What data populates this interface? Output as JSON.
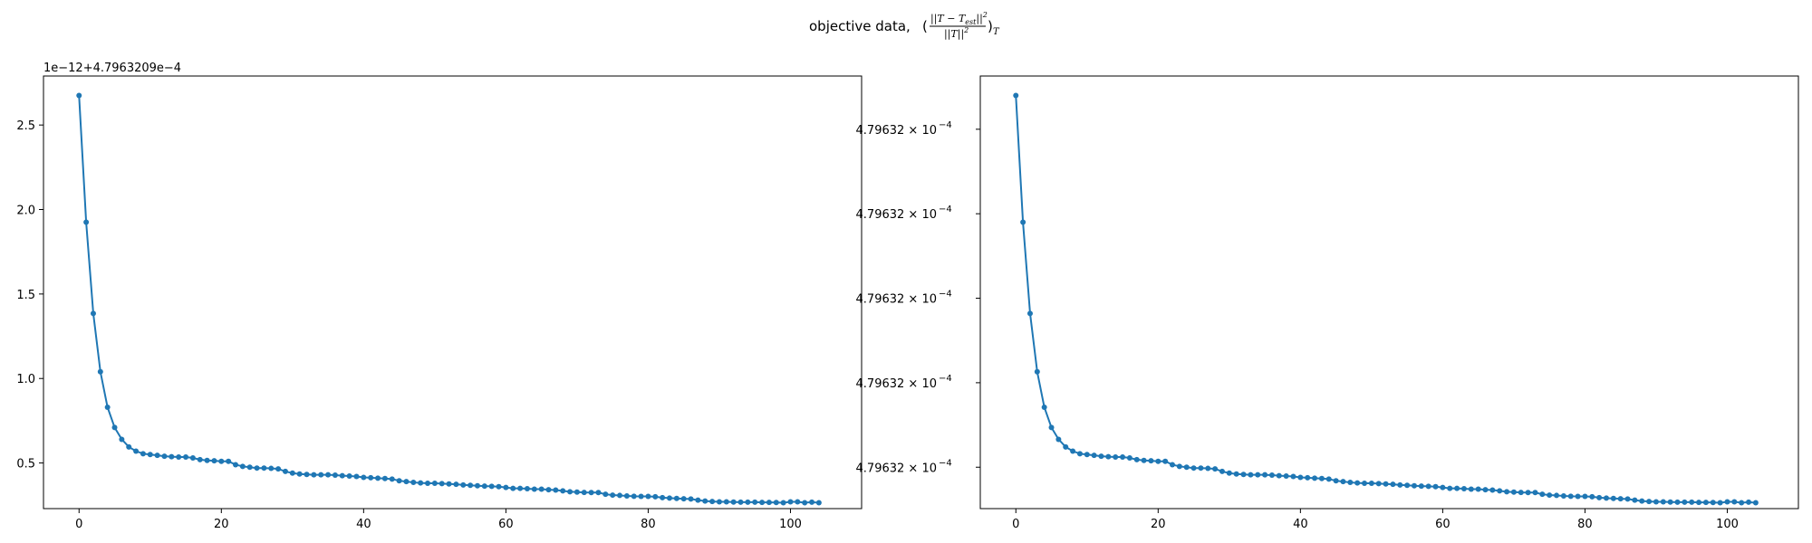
{
  "figure": {
    "title": "objective data, ",
    "title_math": {
      "open": "(",
      "numerator": "||T − T",
      "numerator_sub": "est",
      "numerator_close": "||",
      "numerator_sup": "2",
      "denominator": "||T||",
      "denominator_sup": "2",
      "close": ")",
      "subscript": "T"
    }
  },
  "colors": {
    "series": "#1f77b4",
    "axes": "#000000",
    "background": "#ffffff"
  },
  "chart_data": [
    {
      "type": "line",
      "marker": "dot",
      "xlim": [
        -5,
        110
      ],
      "ylim": [
        0.23,
        2.79
      ],
      "grid": false,
      "offset_label": "1e−12+4.7963209e−4",
      "xticks": [
        0,
        20,
        40,
        60,
        80,
        100
      ],
      "xtick_labels": [
        "0",
        "20",
        "40",
        "60",
        "80",
        "100"
      ],
      "yticks": [
        0.5,
        1.0,
        1.5,
        2.0,
        2.5
      ],
      "ytick_labels": [
        "0.5",
        "1.0",
        "1.5",
        "2.0",
        "2.5"
      ],
      "x": [
        0,
        1,
        2,
        3,
        4,
        5,
        6,
        7,
        8,
        9,
        10,
        11,
        12,
        13,
        14,
        15,
        16,
        17,
        18,
        19,
        20,
        21,
        22,
        23,
        24,
        25,
        26,
        27,
        28,
        29,
        30,
        31,
        32,
        33,
        34,
        35,
        36,
        37,
        38,
        39,
        40,
        41,
        42,
        43,
        44,
        45,
        46,
        47,
        48,
        49,
        50,
        51,
        52,
        53,
        54,
        55,
        56,
        57,
        58,
        59,
        60,
        61,
        62,
        63,
        64,
        65,
        66,
        67,
        68,
        69,
        70,
        71,
        72,
        73,
        74,
        75,
        76,
        77,
        78,
        79,
        80,
        81,
        82,
        83,
        84,
        85,
        86,
        87,
        88,
        89,
        90,
        91,
        92,
        93,
        94,
        95,
        96,
        97,
        98,
        99,
        100,
        101,
        102,
        103,
        104
      ],
      "y": [
        2.675,
        1.925,
        1.385,
        1.04,
        0.83,
        0.71,
        0.64,
        0.595,
        0.57,
        0.555,
        0.55,
        0.545,
        0.54,
        0.537,
        0.535,
        0.535,
        0.53,
        0.52,
        0.515,
        0.513,
        0.51,
        0.51,
        0.49,
        0.48,
        0.475,
        0.47,
        0.47,
        0.468,
        0.465,
        0.45,
        0.44,
        0.435,
        0.432,
        0.43,
        0.43,
        0.43,
        0.428,
        0.425,
        0.423,
        0.42,
        0.415,
        0.413,
        0.41,
        0.408,
        0.405,
        0.395,
        0.39,
        0.385,
        0.382,
        0.38,
        0.38,
        0.378,
        0.376,
        0.374,
        0.37,
        0.368,
        0.365,
        0.363,
        0.362,
        0.36,
        0.355,
        0.35,
        0.35,
        0.348,
        0.345,
        0.345,
        0.342,
        0.34,
        0.335,
        0.33,
        0.328,
        0.326,
        0.325,
        0.325,
        0.315,
        0.31,
        0.308,
        0.305,
        0.303,
        0.302,
        0.302,
        0.3,
        0.295,
        0.292,
        0.29,
        0.288,
        0.287,
        0.28,
        0.275,
        0.272,
        0.27,
        0.27,
        0.269,
        0.268,
        0.268,
        0.268,
        0.267,
        0.267,
        0.266,
        0.265,
        0.27,
        0.27,
        0.265,
        0.268,
        0.265
      ]
    },
    {
      "type": "line",
      "marker": "dot",
      "scale": "log",
      "xlim": [
        -5,
        110
      ],
      "ylim": [
        0.23,
        2.79
      ],
      "grid": false,
      "xticks": [
        0,
        20,
        40,
        60,
        80,
        100
      ],
      "xtick_labels": [
        "0",
        "20",
        "40",
        "60",
        "80",
        "100"
      ],
      "yticks": [
        0.475,
        0.975,
        1.475,
        1.975,
        2.475
      ],
      "ytick_label_mantissa": "4.79632 × 10",
      "ytick_label_exponent": "−4",
      "x": [
        0,
        1,
        2,
        3,
        4,
        5,
        6,
        7,
        8,
        9,
        10,
        11,
        12,
        13,
        14,
        15,
        16,
        17,
        18,
        19,
        20,
        21,
        22,
        23,
        24,
        25,
        26,
        27,
        28,
        29,
        30,
        31,
        32,
        33,
        34,
        35,
        36,
        37,
        38,
        39,
        40,
        41,
        42,
        43,
        44,
        45,
        46,
        47,
        48,
        49,
        50,
        51,
        52,
        53,
        54,
        55,
        56,
        57,
        58,
        59,
        60,
        61,
        62,
        63,
        64,
        65,
        66,
        67,
        68,
        69,
        70,
        71,
        72,
        73,
        74,
        75,
        76,
        77,
        78,
        79,
        80,
        81,
        82,
        83,
        84,
        85,
        86,
        87,
        88,
        89,
        90,
        91,
        92,
        93,
        94,
        95,
        96,
        97,
        98,
        99,
        100,
        101,
        102,
        103,
        104
      ],
      "y": [
        2.675,
        1.925,
        1.385,
        1.04,
        0.83,
        0.71,
        0.64,
        0.595,
        0.57,
        0.555,
        0.55,
        0.545,
        0.54,
        0.537,
        0.535,
        0.535,
        0.53,
        0.52,
        0.515,
        0.513,
        0.51,
        0.51,
        0.49,
        0.48,
        0.475,
        0.47,
        0.47,
        0.468,
        0.465,
        0.45,
        0.44,
        0.435,
        0.432,
        0.43,
        0.43,
        0.43,
        0.428,
        0.425,
        0.423,
        0.42,
        0.415,
        0.413,
        0.41,
        0.408,
        0.405,
        0.395,
        0.39,
        0.385,
        0.382,
        0.38,
        0.38,
        0.378,
        0.376,
        0.374,
        0.37,
        0.368,
        0.365,
        0.363,
        0.362,
        0.36,
        0.355,
        0.35,
        0.35,
        0.348,
        0.345,
        0.345,
        0.342,
        0.34,
        0.335,
        0.33,
        0.328,
        0.326,
        0.325,
        0.325,
        0.315,
        0.31,
        0.308,
        0.305,
        0.303,
        0.302,
        0.302,
        0.3,
        0.295,
        0.292,
        0.29,
        0.288,
        0.287,
        0.28,
        0.275,
        0.272,
        0.27,
        0.27,
        0.269,
        0.268,
        0.268,
        0.268,
        0.267,
        0.267,
        0.266,
        0.265,
        0.27,
        0.27,
        0.265,
        0.268,
        0.265
      ]
    }
  ]
}
